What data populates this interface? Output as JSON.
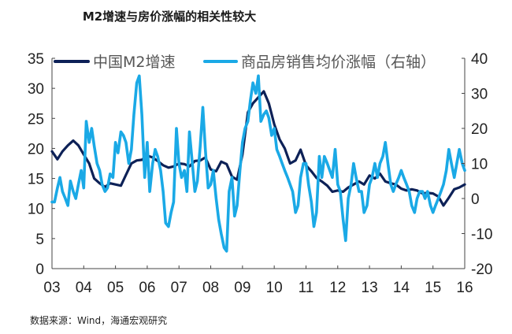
{
  "title": "M2增速与房价涨幅的相关性较大",
  "source": "数据来源：Wind，海通宏观研究",
  "colors": {
    "m2": "#0d2157",
    "house": "#1aa9e6"
  },
  "chart_data": {
    "type": "line",
    "title": "M2增速与房价涨幅的相关性较大",
    "x_ticks": [
      "03",
      "04",
      "05",
      "06",
      "07",
      "08",
      "09",
      "10",
      "11",
      "12",
      "13",
      "14",
      "15",
      "16"
    ],
    "xlim": [
      2003.0,
      2016.0
    ],
    "y_left": {
      "ylim": [
        0,
        35
      ],
      "ticks": [
        "0",
        "5",
        "10",
        "15",
        "20",
        "25",
        "30",
        "35"
      ]
    },
    "y_right": {
      "ylim": [
        -20,
        40
      ],
      "ticks": [
        "-20",
        "-10",
        "0",
        "10",
        "20",
        "30",
        "40"
      ]
    },
    "legend_position": "top",
    "series": [
      {
        "name": "中国M2增速",
        "axis": "left",
        "x": [
          2003.0,
          2003.17,
          2003.33,
          2003.5,
          2003.67,
          2003.83,
          2004.0,
          2004.17,
          2004.33,
          2004.5,
          2004.67,
          2004.83,
          2005.0,
          2005.17,
          2005.33,
          2005.5,
          2005.67,
          2005.83,
          2006.0,
          2006.17,
          2006.33,
          2006.5,
          2006.67,
          2006.83,
          2007.0,
          2007.17,
          2007.33,
          2007.5,
          2007.67,
          2007.83,
          2008.0,
          2008.17,
          2008.33,
          2008.5,
          2008.67,
          2008.83,
          2009.0,
          2009.17,
          2009.33,
          2009.5,
          2009.67,
          2009.83,
          2010.0,
          2010.17,
          2010.33,
          2010.5,
          2010.67,
          2010.83,
          2011.0,
          2011.17,
          2011.33,
          2011.5,
          2011.67,
          2011.83,
          2012.0,
          2012.17,
          2012.33,
          2012.5,
          2012.67,
          2012.83,
          2013.0,
          2013.17,
          2013.33,
          2013.5,
          2013.67,
          2013.83,
          2014.0,
          2014.17,
          2014.33,
          2014.5,
          2014.67,
          2014.83,
          2015.0,
          2015.17,
          2015.33,
          2015.5,
          2015.67,
          2015.83,
          2016.0
        ],
        "values": [
          19.5,
          18.2,
          19.5,
          20.5,
          21.3,
          20.5,
          19.0,
          17.5,
          15.0,
          14.2,
          13.6,
          14.2,
          14.0,
          13.8,
          15.6,
          17.5,
          18.0,
          18.1,
          18.8,
          18.5,
          17.9,
          17.2,
          16.8,
          17.0,
          17.5,
          17.4,
          17.0,
          17.9,
          18.0,
          18.5,
          16.5,
          16.2,
          17.8,
          17.4,
          15.3,
          14.8,
          19.0,
          26.0,
          27.5,
          28.5,
          29.5,
          27.5,
          24.0,
          21.5,
          20.0,
          17.5,
          18.0,
          19.8,
          17.2,
          16.2,
          15.1,
          14.5,
          13.8,
          12.8,
          13.0,
          12.8,
          13.5,
          14.0,
          14.5,
          14.0,
          15.5,
          15.0,
          15.8,
          14.5,
          14.2,
          14.0,
          13.3,
          13.0,
          13.2,
          13.0,
          12.5,
          12.6,
          12.5,
          12.0,
          10.5,
          11.8,
          13.2,
          13.5,
          14.0
        ]
      },
      {
        "name": "商品房销售均价涨幅（右轴）",
        "axis": "right",
        "x": [
          2003.0,
          2003.08,
          2003.17,
          2003.25,
          2003.33,
          2003.42,
          2003.5,
          2003.58,
          2003.67,
          2003.75,
          2003.83,
          2003.92,
          2004.0,
          2004.08,
          2004.17,
          2004.25,
          2004.33,
          2004.42,
          2004.5,
          2004.58,
          2004.67,
          2004.75,
          2004.83,
          2004.92,
          2005.0,
          2005.08,
          2005.17,
          2005.25,
          2005.33,
          2005.42,
          2005.5,
          2005.58,
          2005.67,
          2005.75,
          2005.83,
          2005.92,
          2006.0,
          2006.08,
          2006.17,
          2006.25,
          2006.33,
          2006.42,
          2006.5,
          2006.58,
          2006.67,
          2006.75,
          2006.83,
          2006.92,
          2007.0,
          2007.08,
          2007.17,
          2007.25,
          2007.33,
          2007.42,
          2007.5,
          2007.58,
          2007.67,
          2007.75,
          2007.83,
          2007.92,
          2008.0,
          2008.08,
          2008.17,
          2008.25,
          2008.33,
          2008.42,
          2008.5,
          2008.58,
          2008.67,
          2008.75,
          2008.83,
          2008.92,
          2009.0,
          2009.08,
          2009.17,
          2009.25,
          2009.33,
          2009.42,
          2009.5,
          2009.58,
          2009.67,
          2009.75,
          2009.83,
          2009.92,
          2010.0,
          2010.08,
          2010.17,
          2010.25,
          2010.33,
          2010.42,
          2010.5,
          2010.58,
          2010.67,
          2010.75,
          2010.83,
          2010.92,
          2011.0,
          2011.08,
          2011.17,
          2011.25,
          2011.33,
          2011.42,
          2011.5,
          2011.58,
          2011.67,
          2011.75,
          2011.83,
          2011.92,
          2012.0,
          2012.08,
          2012.17,
          2012.25,
          2012.33,
          2012.42,
          2012.5,
          2012.58,
          2012.67,
          2012.75,
          2012.83,
          2012.92,
          2013.0,
          2013.08,
          2013.17,
          2013.25,
          2013.33,
          2013.42,
          2013.5,
          2013.58,
          2013.67,
          2013.75,
          2013.83,
          2013.92,
          2014.0,
          2014.08,
          2014.17,
          2014.25,
          2014.33,
          2014.42,
          2014.5,
          2014.58,
          2014.67,
          2014.75,
          2014.83,
          2014.92,
          2015.0,
          2015.08,
          2015.17,
          2015.25,
          2015.33,
          2015.42,
          2015.5,
          2015.58,
          2015.67,
          2015.75,
          2015.83,
          2015.92,
          2016.0
        ],
        "values": [
          -1,
          -1,
          3,
          6,
          2,
          0,
          -2,
          5,
          2,
          0,
          4,
          8,
          3,
          22,
          16,
          20,
          15,
          10,
          8,
          4,
          2,
          3,
          7,
          6,
          16,
          13,
          19,
          18,
          16,
          10,
          14,
          24,
          33,
          35,
          24,
          6,
          16,
          2,
          10,
          14,
          12,
          8,
          2,
          -7,
          -8,
          -4,
          -1,
          20,
          10,
          6,
          8,
          2,
          19,
          10,
          2,
          5,
          15,
          26,
          14,
          3,
          4,
          8,
          0,
          -6,
          -10,
          -14,
          -15,
          2,
          6,
          -5,
          -2,
          8,
          16,
          20,
          22,
          28,
          33,
          30,
          35,
          22,
          24,
          25,
          23,
          18,
          20,
          14,
          12,
          10,
          8,
          6,
          4,
          2,
          -4,
          -2,
          6,
          10,
          10,
          4,
          -1,
          -8,
          -4,
          12,
          6,
          12,
          10,
          8,
          6,
          14,
          4,
          2,
          -6,
          -12,
          0,
          4,
          10,
          6,
          2,
          2,
          -4,
          -2,
          4,
          6,
          10,
          6,
          10,
          12,
          16,
          10,
          4,
          2,
          4,
          6,
          8,
          6,
          4,
          2,
          -2,
          -4,
          0,
          2,
          2,
          0,
          2,
          -2,
          -4,
          -2,
          0,
          2,
          4,
          8,
          14,
          10,
          6,
          10,
          14,
          10,
          8
        ]
      }
    ]
  }
}
